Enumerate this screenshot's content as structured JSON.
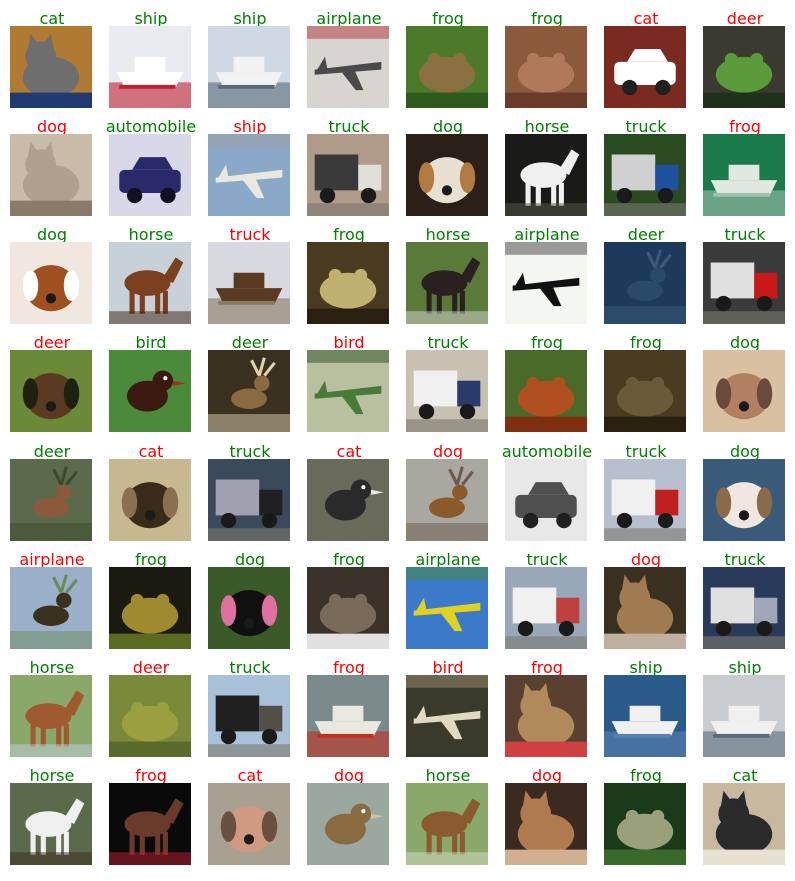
{
  "colors": {
    "correct": "#008000",
    "wrong": "#ff0000"
  },
  "images": [
    {
      "label": "cat",
      "correct": true,
      "scene": "cat",
      "bg": "#b07a32",
      "fg": "#6e6e6e",
      "acc": "#1f3a6e"
    },
    {
      "label": "ship",
      "correct": true,
      "scene": "ship",
      "bg": "#e8ecf0",
      "fg": "#ffffff",
      "acc": "#c02030"
    },
    {
      "label": "ship",
      "correct": true,
      "scene": "ship",
      "bg": "#cfd9e3",
      "fg": "#f2f2f2",
      "acc": "#5a6a7a"
    },
    {
      "label": "airplane",
      "correct": true,
      "scene": "airplane",
      "bg": "#d8d4d0",
      "fg": "#4a4a4a",
      "acc": "#b03030"
    },
    {
      "label": "frog",
      "correct": true,
      "scene": "frog",
      "bg": "#4a7a2a",
      "fg": "#8a7040",
      "acc": "#2f5a1e"
    },
    {
      "label": "frog",
      "correct": true,
      "scene": "frog",
      "bg": "#8a5a3a",
      "fg": "#b07a5a",
      "acc": "#6a3a2a"
    },
    {
      "label": "cat",
      "correct": false,
      "scene": "car",
      "bg": "#7a2a20",
      "fg": "#ffffff",
      "acc": "#202020"
    },
    {
      "label": "deer",
      "correct": false,
      "scene": "frog",
      "bg": "#3a3a30",
      "fg": "#5a9a3a",
      "acc": "#20301a"
    },
    {
      "label": "dog",
      "correct": false,
      "scene": "cat",
      "bg": "#c8bca8",
      "fg": "#b0a090",
      "acc": "#8a7a6a"
    },
    {
      "label": "automobile",
      "correct": true,
      "scene": "car",
      "bg": "#d8d8e8",
      "fg": "#2a2a6a",
      "acc": "#101020"
    },
    {
      "label": "ship",
      "correct": false,
      "scene": "airplane",
      "bg": "#8aa8c8",
      "fg": "#e8e8e0",
      "acc": "#a0a0a0"
    },
    {
      "label": "truck",
      "correct": true,
      "scene": "truck",
      "bg": "#b09a88",
      "fg": "#e0e0d8",
      "acc": "#3a3a3a"
    },
    {
      "label": "dog",
      "correct": true,
      "scene": "dog",
      "bg": "#2a2018",
      "fg": "#e8e0d0",
      "acc": "#b07a40"
    },
    {
      "label": "horse",
      "correct": true,
      "scene": "horse",
      "bg": "#1a1a18",
      "fg": "#f0f0f0",
      "acc": "#5a5a50"
    },
    {
      "label": "truck",
      "correct": true,
      "scene": "truck",
      "bg": "#2a4a20",
      "fg": "#2050a0",
      "acc": "#d0d0d0"
    },
    {
      "label": "frog",
      "correct": false,
      "scene": "ship",
      "bg": "#1a7a4a",
      "fg": "#e0e8e0",
      "acc": "#a0c0b0"
    },
    {
      "label": "dog",
      "correct": true,
      "scene": "dog",
      "bg": "#f0e8e0",
      "fg": "#a05020",
      "acc": "#ffffff"
    },
    {
      "label": "horse",
      "correct": true,
      "scene": "horse",
      "bg": "#c8d0d8",
      "fg": "#7a4020",
      "acc": "#3a2010"
    },
    {
      "label": "truck",
      "correct": false,
      "scene": "ship",
      "bg": "#d8d8e0",
      "fg": "#5a3a20",
      "acc": "#8a7a60"
    },
    {
      "label": "frog",
      "correct": true,
      "scene": "frog",
      "bg": "#4a3a20",
      "fg": "#c0b070",
      "acc": "#2a2010"
    },
    {
      "label": "horse",
      "correct": true,
      "scene": "horse",
      "bg": "#5a7a3a",
      "fg": "#2a2020",
      "acc": "#d8d8d8"
    },
    {
      "label": "airplane",
      "correct": true,
      "scene": "airplane",
      "bg": "#f4f6f0",
      "fg": "#101010",
      "acc": "#404040"
    },
    {
      "label": "deer",
      "correct": true,
      "scene": "deer",
      "bg": "#1e3a5a",
      "fg": "#2a4a6a",
      "acc": "#3a5a7a"
    },
    {
      "label": "truck",
      "correct": true,
      "scene": "truck",
      "bg": "#3a3a3a",
      "fg": "#c81818",
      "acc": "#e0e0e0"
    },
    {
      "label": "deer",
      "correct": false,
      "scene": "dog",
      "bg": "#6a8a3a",
      "fg": "#5a3a20",
      "acc": "#202010"
    },
    {
      "label": "bird",
      "correct": true,
      "scene": "bird",
      "bg": "#4a8a3a",
      "fg": "#3a1a10",
      "acc": "#a03020"
    },
    {
      "label": "deer",
      "correct": true,
      "scene": "deer",
      "bg": "#3a3020",
      "fg": "#8a6a40",
      "acc": "#e0d0b0"
    },
    {
      "label": "bird",
      "correct": false,
      "scene": "airplane",
      "bg": "#b8c0a0",
      "fg": "#4a7a3a",
      "acc": "#2a4a20"
    },
    {
      "label": "truck",
      "correct": true,
      "scene": "truck",
      "bg": "#c8c0b0",
      "fg": "#2a3a6a",
      "acc": "#f0f0f0"
    },
    {
      "label": "frog",
      "correct": true,
      "scene": "frog",
      "bg": "#4a6a2a",
      "fg": "#b05020",
      "acc": "#803010"
    },
    {
      "label": "frog",
      "correct": true,
      "scene": "frog",
      "bg": "#4a3a20",
      "fg": "#6a5a3a",
      "acc": "#2a2010"
    },
    {
      "label": "dog",
      "correct": true,
      "scene": "dog",
      "bg": "#d8c0a0",
      "fg": "#b08060",
      "acc": "#6a4a3a"
    },
    {
      "label": "deer",
      "correct": true,
      "scene": "deer",
      "bg": "#5a6a4a",
      "fg": "#8a5a3a",
      "acc": "#3a4a2a"
    },
    {
      "label": "cat",
      "correct": false,
      "scene": "dog",
      "bg": "#c8b890",
      "fg": "#3a2a1a",
      "acc": "#8a7050"
    },
    {
      "label": "truck",
      "correct": true,
      "scene": "truck",
      "bg": "#3a4a5a",
      "fg": "#202020",
      "acc": "#a0a0b0"
    },
    {
      "label": "cat",
      "correct": false,
      "scene": "bird",
      "bg": "#6a6a5a",
      "fg": "#2a2a2a",
      "acc": "#e8e8e8"
    },
    {
      "label": "dog",
      "correct": false,
      "scene": "deer",
      "bg": "#a8a8a0",
      "fg": "#8a5a2a",
      "acc": "#6a5a4a"
    },
    {
      "label": "automobile",
      "correct": true,
      "scene": "car",
      "bg": "#e8e8e8",
      "fg": "#505050",
      "acc": "#202020"
    },
    {
      "label": "truck",
      "correct": true,
      "scene": "truck",
      "bg": "#b8c0d0",
      "fg": "#c02020",
      "acc": "#f0f0f0"
    },
    {
      "label": "dog",
      "correct": true,
      "scene": "dog",
      "bg": "#3a5a7a",
      "fg": "#f0e8e0",
      "acc": "#8a6a4a"
    },
    {
      "label": "airplane",
      "correct": false,
      "scene": "deer",
      "bg": "#9ab0c8",
      "fg": "#3a3020",
      "acc": "#6a8a5a"
    },
    {
      "label": "frog",
      "correct": true,
      "scene": "frog",
      "bg": "#1a1a10",
      "fg": "#a08a30",
      "acc": "#5a6a20"
    },
    {
      "label": "dog",
      "correct": true,
      "scene": "dog",
      "bg": "#3a5a2a",
      "fg": "#101010",
      "acc": "#e070a0"
    },
    {
      "label": "frog",
      "correct": true,
      "scene": "frog",
      "bg": "#3a3228",
      "fg": "#7a6a5a",
      "acc": "#e0e0e0"
    },
    {
      "label": "airplane",
      "correct": true,
      "scene": "airplane",
      "bg": "#3a7ac8",
      "fg": "#e0d020",
      "acc": "#4a8a3a"
    },
    {
      "label": "truck",
      "correct": true,
      "scene": "truck",
      "bg": "#98a8b8",
      "fg": "#c04040",
      "acc": "#f0f0f0"
    },
    {
      "label": "dog",
      "correct": false,
      "scene": "cat",
      "bg": "#3a3020",
      "fg": "#a07a50",
      "acc": "#c0b0a0"
    },
    {
      "label": "truck",
      "correct": true,
      "scene": "truck",
      "bg": "#2a3a5a",
      "fg": "#a0a8b8",
      "acc": "#e0e0e0"
    },
    {
      "label": "horse",
      "correct": true,
      "scene": "horse",
      "bg": "#8aa86a",
      "fg": "#a05a30",
      "acc": "#c0d0e0"
    },
    {
      "label": "deer",
      "correct": false,
      "scene": "frog",
      "bg": "#7a8a3a",
      "fg": "#9aa040",
      "acc": "#5a6a2a"
    },
    {
      "label": "truck",
      "correct": true,
      "scene": "truck",
      "bg": "#a8c0d8",
      "fg": "#505048",
      "acc": "#202020"
    },
    {
      "label": "frog",
      "correct": false,
      "scene": "ship",
      "bg": "#7a8a8a",
      "fg": "#e8e8e0",
      "acc": "#c03020"
    },
    {
      "label": "bird",
      "correct": false,
      "scene": "airplane",
      "bg": "#3a3a2a",
      "fg": "#e0d8c0",
      "acc": "#a09070"
    },
    {
      "label": "frog",
      "correct": false,
      "scene": "cat",
      "bg": "#5a4030",
      "fg": "#b08a5a",
      "acc": "#d04040"
    },
    {
      "label": "ship",
      "correct": true,
      "scene": "ship",
      "bg": "#2a5a8a",
      "fg": "#f0f0f0",
      "acc": "#5a80b0"
    },
    {
      "label": "ship",
      "correct": true,
      "scene": "ship",
      "bg": "#c8ccd0",
      "fg": "#f0f0f0",
      "acc": "#5a6a7a"
    },
    {
      "label": "horse",
      "correct": true,
      "scene": "horse",
      "bg": "#5a6a4a",
      "fg": "#f0f0f0",
      "acc": "#3a2a20"
    },
    {
      "label": "frog",
      "correct": false,
      "scene": "horse",
      "bg": "#0a0a0a",
      "fg": "#6a3a2a",
      "acc": "#c02030"
    },
    {
      "label": "cat",
      "correct": false,
      "scene": "dog",
      "bg": "#a8a090",
      "fg": "#d09a80",
      "acc": "#6a5040"
    },
    {
      "label": "dog",
      "correct": false,
      "scene": "bird",
      "bg": "#9aa8a0",
      "fg": "#8a6a40",
      "acc": "#d0c0a0"
    },
    {
      "label": "horse",
      "correct": true,
      "scene": "horse",
      "bg": "#8aa86a",
      "fg": "#8a5a30",
      "acc": "#d8e0c8"
    },
    {
      "label": "dog",
      "correct": false,
      "scene": "cat",
      "bg": "#3a2a20",
      "fg": "#b07a50",
      "acc": "#d0b090"
    },
    {
      "label": "frog",
      "correct": true,
      "scene": "frog",
      "bg": "#1a3a1a",
      "fg": "#9aa07a",
      "acc": "#3a6a2a"
    },
    {
      "label": "cat",
      "correct": true,
      "scene": "cat",
      "bg": "#c8b8a0",
      "fg": "#2a2a2a",
      "acc": "#e8e0d0"
    }
  ]
}
